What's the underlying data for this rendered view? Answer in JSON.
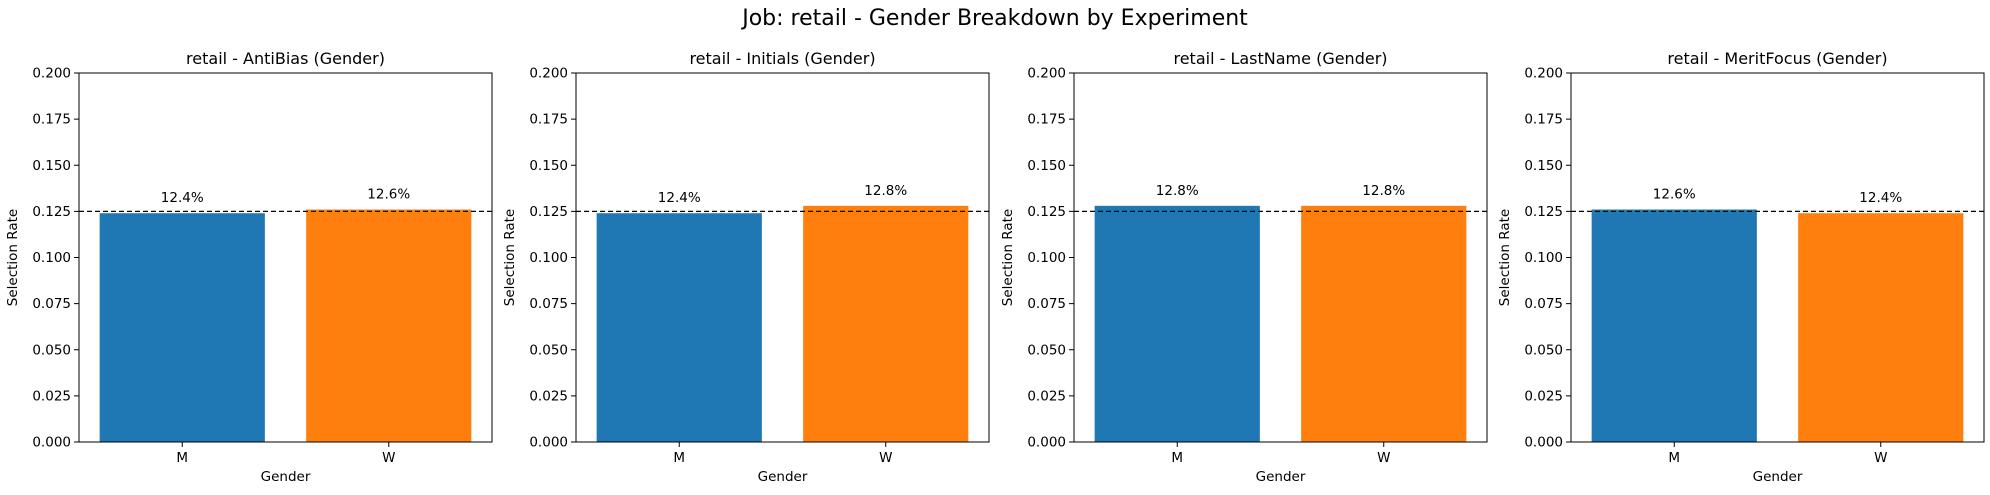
{
  "figure": {
    "title": "Job: retail - Gender Breakdown by Experiment"
  },
  "colors": {
    "M": "#1f77b4",
    "W": "#ff7f0e",
    "reference_line": "#000000"
  },
  "chart_data": [
    {
      "type": "bar",
      "title": "retail - AntiBias (Gender)",
      "xlabel": "Gender",
      "ylabel": "Selection Rate",
      "categories": [
        "M",
        "W"
      ],
      "values": [
        0.124,
        0.126
      ],
      "data_labels": [
        "12.4%",
        "12.6%"
      ],
      "ylim": [
        0,
        0.2
      ],
      "yticks": [
        "0.000",
        "0.025",
        "0.050",
        "0.075",
        "0.100",
        "0.125",
        "0.150",
        "0.175",
        "0.200"
      ],
      "reference_line": 0.125,
      "grid": false
    },
    {
      "type": "bar",
      "title": "retail - Initials (Gender)",
      "xlabel": "Gender",
      "ylabel": "Selection Rate",
      "categories": [
        "M",
        "W"
      ],
      "values": [
        0.124,
        0.128
      ],
      "data_labels": [
        "12.4%",
        "12.8%"
      ],
      "ylim": [
        0,
        0.2
      ],
      "yticks": [
        "0.000",
        "0.025",
        "0.050",
        "0.075",
        "0.100",
        "0.125",
        "0.150",
        "0.175",
        "0.200"
      ],
      "reference_line": 0.125,
      "grid": false
    },
    {
      "type": "bar",
      "title": "retail - LastName (Gender)",
      "xlabel": "Gender",
      "ylabel": "Selection Rate",
      "categories": [
        "M",
        "W"
      ],
      "values": [
        0.128,
        0.128
      ],
      "data_labels": [
        "12.8%",
        "12.8%"
      ],
      "ylim": [
        0,
        0.2
      ],
      "yticks": [
        "0.000",
        "0.025",
        "0.050",
        "0.075",
        "0.100",
        "0.125",
        "0.150",
        "0.175",
        "0.200"
      ],
      "reference_line": 0.125,
      "grid": false
    },
    {
      "type": "bar",
      "title": "retail - MeritFocus (Gender)",
      "xlabel": "Gender",
      "ylabel": "Selection Rate",
      "categories": [
        "M",
        "W"
      ],
      "values": [
        0.126,
        0.124
      ],
      "data_labels": [
        "12.6%",
        "12.4%"
      ],
      "ylim": [
        0,
        0.2
      ],
      "yticks": [
        "0.000",
        "0.025",
        "0.050",
        "0.075",
        "0.100",
        "0.125",
        "0.150",
        "0.175",
        "0.200"
      ],
      "reference_line": 0.125,
      "grid": false
    }
  ]
}
